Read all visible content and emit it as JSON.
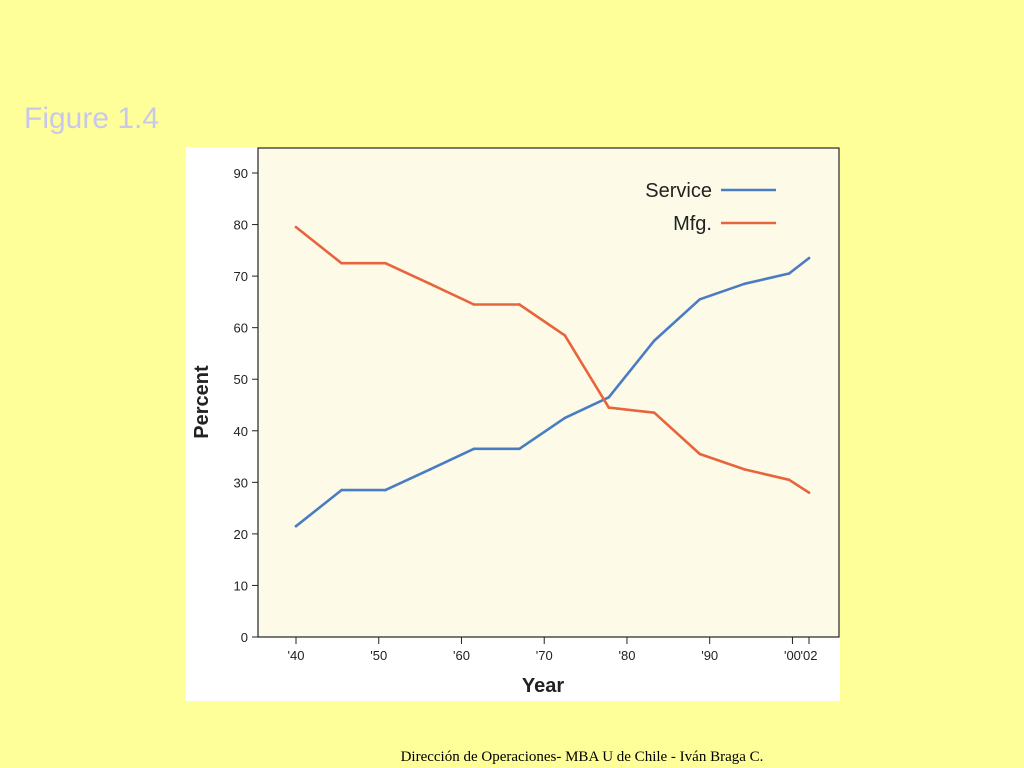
{
  "slide": {
    "title": "Figure 1.4",
    "footer": "Dirección de Operaciones- MBA U de Chile - Iván Braga C."
  },
  "colors": {
    "background": "#ffff99",
    "plot_area": "#fdfbe8",
    "service": "#4a7cc3",
    "mfg": "#e8643c"
  },
  "chart_data": {
    "type": "line",
    "title": "",
    "xlabel": "Year",
    "ylabel": "Percent",
    "ylim": [
      0,
      90
    ],
    "xlim": [
      1938,
      2003
    ],
    "y_ticks": [
      "0",
      "10",
      "20",
      "30",
      "40",
      "50",
      "60",
      "70",
      "80",
      "90"
    ],
    "x_ticks": [
      {
        "x": 1940,
        "label": "'40"
      },
      {
        "x": 1950,
        "label": "'50"
      },
      {
        "x": 1960,
        "label": "'60"
      },
      {
        "x": 1970,
        "label": "'70"
      },
      {
        "x": 1980,
        "label": "'80"
      },
      {
        "x": 1990,
        "label": "'90"
      },
      {
        "x": 2000,
        "label": "'00"
      },
      {
        "x": 2002,
        "label": "'02"
      }
    ],
    "grid": false,
    "legend_position": "top-right",
    "series": [
      {
        "name": "Service",
        "x": [
          1940,
          1945.5,
          1950.8,
          1956.2,
          1961.5,
          1967,
          1972.5,
          1977.8,
          1983.3,
          1988.8,
          1994.2,
          1999.6,
          2002
        ],
        "values": [
          21.5,
          28.5,
          28.5,
          32.5,
          36.5,
          36.5,
          42.5,
          46.5,
          57.5,
          65.5,
          68.5,
          70.5,
          73.5
        ]
      },
      {
        "name": "Mfg.",
        "x": [
          1940,
          1945.5,
          1950.8,
          1956.2,
          1961.5,
          1967,
          1972.5,
          1977.8,
          1983.3,
          1988.8,
          1994.2,
          1999.6,
          2002
        ],
        "values": [
          79.5,
          72.5,
          72.5,
          68.5,
          64.5,
          64.5,
          58.5,
          44.5,
          43.5,
          35.5,
          32.5,
          30.5,
          28
        ]
      }
    ]
  }
}
